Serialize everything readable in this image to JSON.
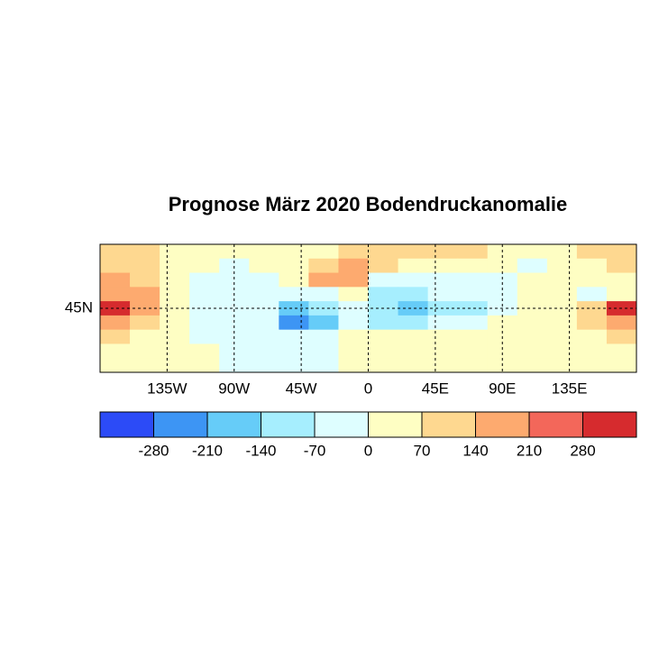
{
  "chart_data": {
    "type": "map",
    "title": "Prognose März 2020 Bodendruckanomalie",
    "x": [
      -170,
      -150,
      -130,
      -110,
      -90,
      -70,
      -50,
      -30,
      -10,
      10,
      30,
      50,
      70,
      90,
      110,
      130,
      150,
      170
    ],
    "y": [
      85,
      75,
      65,
      55,
      45,
      35,
      25,
      15,
      5
    ],
    "xlim": [
      -180,
      180
    ],
    "ylim": [
      0,
      90
    ],
    "xticks": [
      {
        "value": -135,
        "label": "135W"
      },
      {
        "value": -90,
        "label": "90W"
      },
      {
        "value": -45,
        "label": "45W"
      },
      0,
      {
        "value": 45,
        "label": "45E"
      },
      {
        "value": 90,
        "label": "90E"
      },
      {
        "value": 135,
        "label": "135E"
      }
    ],
    "yticks": [
      {
        "value": 45,
        "label": "45N"
      }
    ],
    "grid": true,
    "values": [
      [
        110,
        100,
        60,
        40,
        30,
        30,
        40,
        60,
        90,
        90,
        80,
        70,
        70,
        60,
        50,
        50,
        80,
        110
      ],
      [
        120,
        80,
        20,
        10,
        -10,
        10,
        40,
        120,
        150,
        120,
        40,
        30,
        40,
        40,
        -20,
        20,
        60,
        100
      ],
      [
        150,
        120,
        40,
        -20,
        -20,
        -10,
        60,
        190,
        200,
        -30,
        -60,
        -40,
        -40,
        -20,
        10,
        40,
        40,
        60
      ],
      [
        200,
        150,
        60,
        -10,
        -30,
        -30,
        -60,
        -20,
        40,
        -120,
        -130,
        -70,
        -60,
        -40,
        30,
        60,
        -20,
        40
      ],
      [
        290,
        160,
        40,
        -20,
        -20,
        -30,
        -180,
        -120,
        -40,
        -140,
        -160,
        -90,
        -80,
        -40,
        40,
        60,
        120,
        290
      ],
      [
        150,
        100,
        30,
        -10,
        -30,
        -60,
        -230,
        -180,
        -40,
        -90,
        -100,
        -60,
        -20,
        20,
        40,
        60,
        100,
        180
      ],
      [
        80,
        40,
        20,
        -10,
        -20,
        -40,
        -60,
        -40,
        20,
        20,
        30,
        20,
        20,
        30,
        30,
        40,
        60,
        90
      ],
      [
        40,
        30,
        20,
        10,
        -10,
        -20,
        -30,
        -20,
        20,
        30,
        40,
        30,
        30,
        30,
        30,
        30,
        40,
        50
      ],
      [
        30,
        30,
        20,
        10,
        -10,
        -30,
        -40,
        -20,
        20,
        30,
        30,
        30,
        20,
        20,
        20,
        20,
        30,
        30
      ]
    ],
    "levels": [
      -350,
      -280,
      -210,
      -140,
      -70,
      0,
      70,
      140,
      210,
      280,
      350
    ],
    "colors": [
      "#2c4bf7",
      "#3d95f4",
      "#66ccf8",
      "#a6eefe",
      "#defeff",
      "#fefec3",
      "#fed890",
      "#fdaa6f",
      "#f3675a",
      "#d62b2e"
    ],
    "colorbar_ticks": [
      -280,
      -210,
      -140,
      -70,
      0,
      70,
      140,
      210,
      280
    ]
  }
}
